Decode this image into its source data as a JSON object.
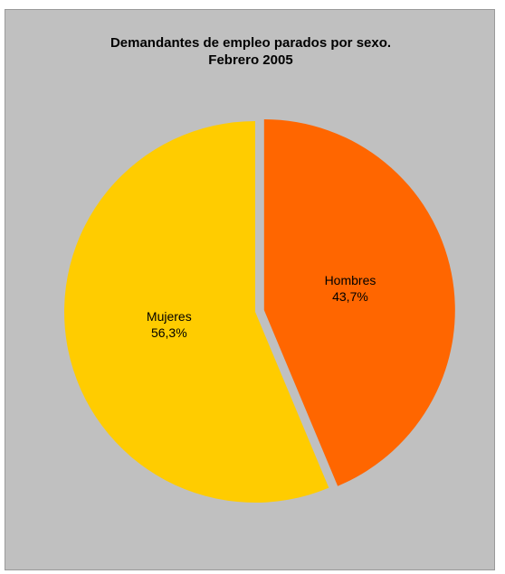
{
  "chart_data": {
    "type": "pie",
    "title_lines": [
      "Demandantes de empleo parados por sexo.",
      "Febrero 2005"
    ],
    "slices": [
      {
        "label": "Hombres",
        "value": 43.7,
        "value_label": "43,7%",
        "color": "#ff6600"
      },
      {
        "label": "Mujeres",
        "value": 56.3,
        "value_label": "56,3%",
        "color": "#ffcc00"
      }
    ],
    "background_color": "#c0c0c0",
    "legend": "none",
    "exploded_slice": "Hombres"
  }
}
